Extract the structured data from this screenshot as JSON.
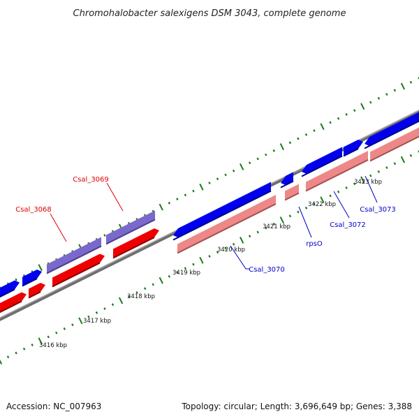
{
  "title": "Chromohalobacter salexigens DSM 3043, complete genome",
  "footer": {
    "accession": "Accession: NC_007963",
    "summary": "Topology: circular; Length: 3,696,649 bp; Genes: 3,388"
  },
  "colors": {
    "forward_cds": "#0000ee",
    "reverse_cds": "#ee0000",
    "forward_other": "#7b68cc",
    "reverse_light": "#ee8888",
    "backbone": "#888888",
    "tick": "#1a7a1a",
    "label_red": "#dd0000",
    "label_blue": "#0000cc"
  },
  "ticks": [
    {
      "kbp": 3416,
      "label": "3416 kbp"
    },
    {
      "kbp": 3417,
      "label": "3417 kbp"
    },
    {
      "kbp": 3418,
      "label": "3418 kbp"
    },
    {
      "kbp": 3419,
      "label": "3419 kbp"
    },
    {
      "kbp": 3420,
      "label": "3420 kbp"
    },
    {
      "kbp": 3421,
      "label": "3421 kbp"
    },
    {
      "kbp": 3422,
      "label": "3422 kbp"
    },
    {
      "kbp": 3423,
      "label": "3423 kbp"
    }
  ],
  "genes": [
    {
      "name": "Csal_3068",
      "color": "#dd0000"
    },
    {
      "name": "Csal_3069",
      "color": "#dd0000"
    },
    {
      "name": "Csal_3070",
      "color": "#0000cc"
    },
    {
      "name": "rpsO",
      "color": "#0000cc"
    },
    {
      "name": "Csal_3072",
      "color": "#0000cc"
    },
    {
      "name": "Csal_3073",
      "color": "#0000cc"
    }
  ]
}
